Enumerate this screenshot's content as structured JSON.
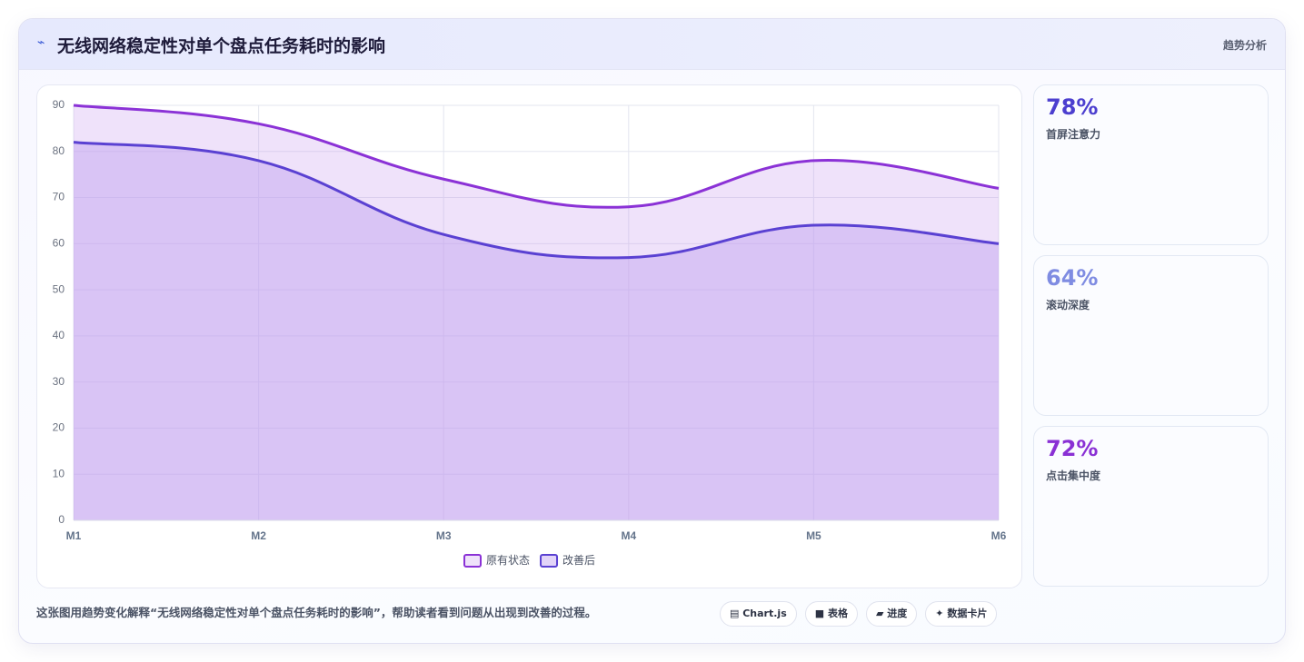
{
  "header": {
    "title": "无线网络稳定性对单个盘点任务耗时的影响",
    "tag": "趋势分析"
  },
  "chart_data": {
    "type": "area",
    "categories": [
      "M1",
      "M2",
      "M3",
      "M4",
      "M5",
      "M6"
    ],
    "series": [
      {
        "name": "原有状态",
        "color": "#8b32d6",
        "fill": "rgba(196,150,238,0.28)",
        "values": [
          90,
          86,
          74,
          68,
          78,
          72
        ]
      },
      {
        "name": "改善后",
        "color": "#5a41d2",
        "fill": "rgba(190,160,240,0.45)",
        "values": [
          82,
          78,
          62,
          57,
          64,
          60
        ]
      }
    ],
    "ylim": [
      0,
      90
    ],
    "yticks": [
      0,
      10,
      20,
      30,
      40,
      50,
      60,
      70,
      80,
      90
    ],
    "grid": true
  },
  "stats": [
    {
      "value": "78%",
      "label": "首屏注意力",
      "color": "#4c3fcf"
    },
    {
      "value": "64%",
      "label": "滚动深度",
      "color": "#7f8ce2"
    },
    {
      "value": "72%",
      "label": "点击集中度",
      "color": "#8a30d4"
    }
  ],
  "footer": {
    "note": "这张图用趋势变化解释“无线网络稳定性对单个盘点任务耗时的影响”，帮助读者看到问题从出现到改善的过程。",
    "chips": [
      "Chart.js",
      "表格",
      "进度",
      "数据卡片"
    ]
  }
}
